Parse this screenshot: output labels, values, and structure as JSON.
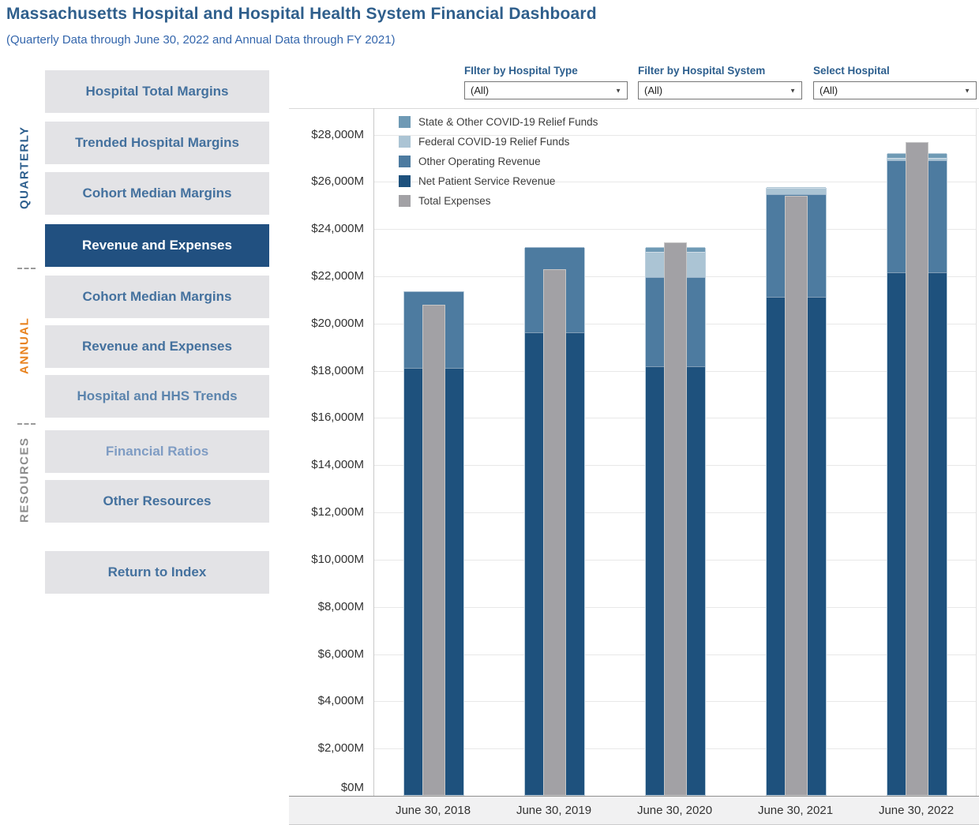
{
  "header": {
    "title": "Massachusetts Hospital and Hospital Health System Financial Dashboard",
    "subtitle": "(Quarterly Data through June 30, 2022 and Annual Data through FY 2021)"
  },
  "filters": {
    "hospital_type": {
      "label": "FIlter by Hospital Type",
      "value": "(All)"
    },
    "hospital_system": {
      "label": "Filter by Hospital System",
      "value": "(All)"
    },
    "hospital": {
      "label": "Select Hospital",
      "value": "(All)"
    }
  },
  "sidebar": {
    "group_labels": {
      "quarterly": "QUARTERLY",
      "annual": "ANNUAL",
      "resources": "RESOURCES"
    },
    "items": [
      {
        "label": "Hospital Total Margins",
        "active": false
      },
      {
        "label": "Trended Hospital Margins",
        "active": false
      },
      {
        "label": "Cohort Median Margins",
        "active": false
      },
      {
        "label": "Revenue and Expenses",
        "active": true
      },
      {
        "label": "Cohort Median Margins",
        "active": false
      },
      {
        "label": "Revenue and Expenses",
        "active": false
      },
      {
        "label": "Hospital and HHS Trends",
        "active": false
      },
      {
        "label": "Financial Ratios",
        "active": false
      },
      {
        "label": "Other Resources",
        "active": false
      },
      {
        "label": "Return to Index",
        "active": false
      }
    ]
  },
  "colors": {
    "title": "#2f5f8c",
    "subtitle": "#3466ac",
    "filter_label": "#2d5f8e",
    "nav_bg": "#e3e3e6",
    "nav_text": "#44719e",
    "nav_text_mid": "#5b84ad",
    "nav_text_light": "#7f9cc3",
    "nav_active_bg": "#215080",
    "nav_active_text": "#ffffff",
    "quarterly": "#2d5f8e",
    "annual": "#e8821e",
    "resources": "#8c8c8c"
  },
  "chart_data": {
    "type": "bar",
    "subtype": "stacked-with-overlay",
    "title": "",
    "xlabel": "",
    "ylabel": "",
    "ylim": [
      0,
      28000
    ],
    "ytick_step": 2000,
    "ytick_format": "$#,##0M",
    "grid": true,
    "legend_position": "top-left-inside",
    "categories": [
      "June 30, 2018",
      "June 30, 2019",
      "June 30, 2020",
      "June 30, 2021",
      "June 30, 2022"
    ],
    "series": [
      {
        "name": "Net Patient Service Revenue",
        "color": "#1e517d",
        "values": [
          18100,
          19600,
          18150,
          21100,
          22150
        ]
      },
      {
        "name": "Other Operating Revenue",
        "color": "#4d7ba0",
        "values": [
          3250,
          3600,
          3800,
          4350,
          4720
        ]
      },
      {
        "name": "Federal COVID-19 Relief Funds",
        "color": "#abc4d4",
        "values": [
          0,
          0,
          1050,
          250,
          130
        ]
      },
      {
        "name": "State & Other COVID-19 Relief Funds",
        "color": "#6f9ab5",
        "values": [
          0,
          0,
          200,
          50,
          200
        ]
      }
    ],
    "revenue_totals": [
      21350,
      23200,
      23200,
      25750,
      27200
    ],
    "overlay_series": {
      "name": "Total Expenses",
      "color": "#a2a1a5",
      "values": [
        20800,
        22300,
        23450,
        25400,
        27700
      ]
    },
    "legend": [
      {
        "label": "State & Other COVID-19 Relief Funds",
        "color": "#6f9ab5"
      },
      {
        "label": "Federal COVID-19 Relief Funds",
        "color": "#abc4d4"
      },
      {
        "label": "Other Operating Revenue",
        "color": "#4d7ba0"
      },
      {
        "label": "Net Patient Service Revenue",
        "color": "#1e517d"
      },
      {
        "label": "Total Expenses",
        "color": "#a2a1a5"
      }
    ]
  }
}
